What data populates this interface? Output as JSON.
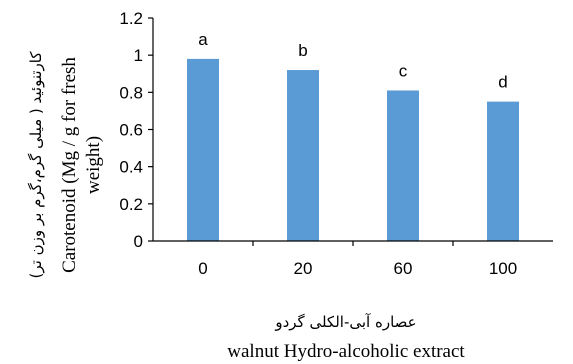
{
  "chart_data": {
    "type": "bar",
    "categories": [
      "0",
      "20",
      "60",
      "100"
    ],
    "values": [
      0.98,
      0.92,
      0.81,
      0.75
    ],
    "labels": [
      "a",
      "b",
      "c",
      "d"
    ],
    "ylim": [
      0,
      1.2
    ],
    "yticks": [
      "0",
      "0.2",
      "0.4",
      "0.6",
      "0.8",
      "1",
      "1.2"
    ],
    "xlabel_fa": "عصاره آبی-الکلی گردو",
    "xlabel_en": "walnut Hydro-alcoholic extract",
    "ylabel_fa": "کارتنوئید ( میلی گرم،گرم بر وزن تر)",
    "ylabel_en_line1": "Carotenoid (Mg / g for fresh",
    "ylabel_en_line2": "weight)",
    "grid": false,
    "legend": "none",
    "colors": {
      "bar": "#5b9bd5",
      "axis": "#000000"
    }
  }
}
